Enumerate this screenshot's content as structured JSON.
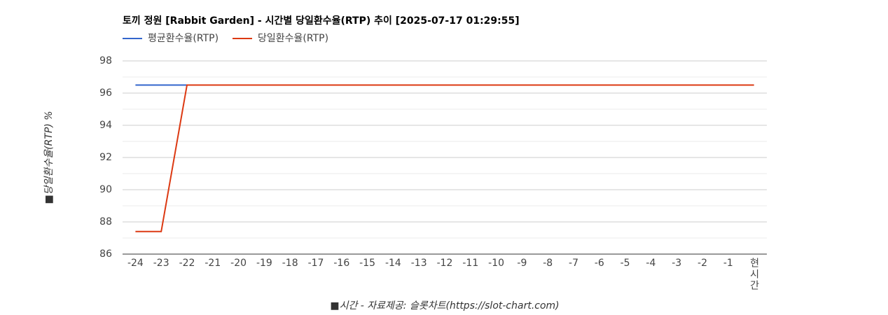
{
  "chart_data": {
    "type": "line",
    "title": "토끼 정원 [Rabbit Garden] - 시간별 당일환수율(RTP) 추이 [2025-07-17 01:29:55]",
    "y_label": "■당일환수율(RTP) %",
    "x_label": "■시간 - 자료제공: 슬롯차트(https://slot-chart.com)",
    "categories": [
      "-24",
      "-23",
      "-22",
      "-21",
      "-20",
      "-19",
      "-18",
      "-17",
      "-16",
      "-15",
      "-14",
      "-13",
      "-12",
      "-11",
      "-10",
      "-9",
      "-8",
      "-7",
      "-6",
      "-5",
      "-4",
      "-3",
      "-2",
      "-1",
      "현시간"
    ],
    "series": [
      {
        "name": "평균환수율(RTP)",
        "color": "#3366cc",
        "values": [
          96.5,
          96.5,
          96.5,
          96.5,
          96.5,
          96.5,
          96.5,
          96.5,
          96.5,
          96.5,
          96.5,
          96.5,
          96.5,
          96.5,
          96.5,
          96.5,
          96.5,
          96.5,
          96.5,
          96.5,
          96.5,
          96.5,
          96.5,
          96.5,
          96.5
        ]
      },
      {
        "name": "당일환수율(RTP)",
        "color": "#dc3912",
        "values": [
          87.4,
          87.4,
          96.5,
          96.5,
          96.5,
          96.5,
          96.5,
          96.5,
          96.5,
          96.5,
          96.5,
          96.5,
          96.5,
          96.5,
          96.5,
          96.5,
          96.5,
          96.5,
          96.5,
          96.5,
          96.5,
          96.5,
          96.5,
          96.5,
          96.5
        ]
      }
    ],
    "ylim": [
      86,
      98
    ],
    "yticks": [
      86,
      88,
      90,
      92,
      94,
      96,
      98
    ],
    "minor_yticks": [
      87,
      89,
      91,
      93,
      95,
      97
    ],
    "grid": true,
    "legend": "top"
  }
}
